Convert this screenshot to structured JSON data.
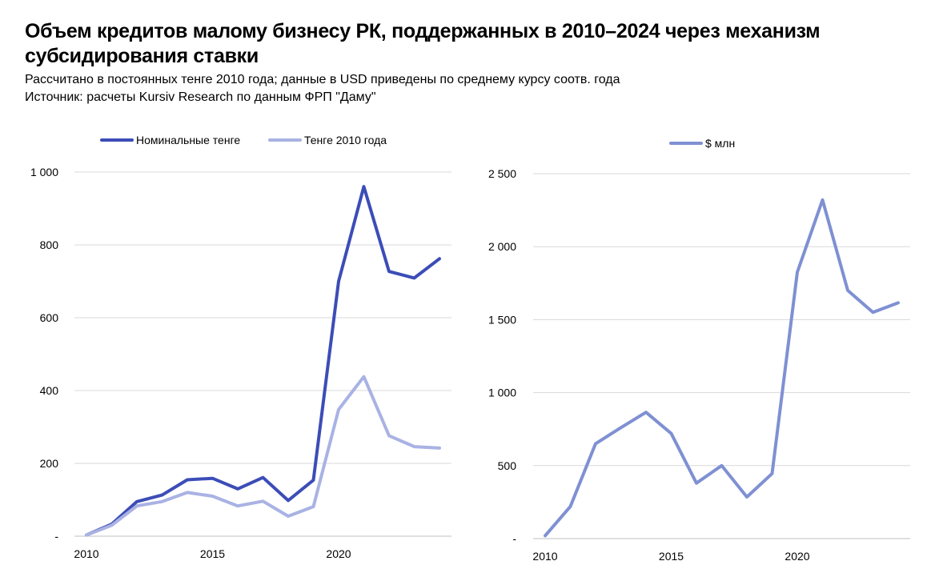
{
  "header": {
    "title": "Объем кредитов малому бизнесу РК, поддержанных в 2010–2024 через механизм субсидирования ставки",
    "subtitle": "Рассчитано в постоянных тенге 2010 года; данные в USD приведены по среднему курсу соотв. года",
    "source": "Источник: расчеты Kursiv Research по данным ФРП \"Даму\""
  },
  "chart_data": [
    {
      "type": "line",
      "x": [
        2010,
        2011,
        2012,
        2013,
        2014,
        2015,
        2016,
        2017,
        2018,
        2019,
        2020,
        2021,
        2022,
        2023,
        2024
      ],
      "x_ticks": [
        2010,
        2015,
        2020
      ],
      "x_tick_labels": [
        "2010",
        "2015",
        "2020"
      ],
      "ylim": [
        0,
        1000
      ],
      "y_ticks": [
        0,
        200,
        400,
        600,
        800,
        1000
      ],
      "y_tick_labels": [
        "-",
        "200",
        "400",
        "600",
        "800",
        "1 000"
      ],
      "grid": true,
      "legend": "top",
      "series": [
        {
          "name": "Номинальные тенге",
          "color": "#3c4db7",
          "values": [
            3,
            33,
            95,
            113,
            155,
            159,
            130,
            161,
            98,
            154,
            700,
            960,
            727,
            709,
            762
          ]
        },
        {
          "name": "Тенге 2010 года",
          "color": "#a9b2e3",
          "values": [
            3,
            30,
            83,
            95,
            120,
            110,
            83,
            96,
            55,
            81,
            348,
            438,
            276,
            246,
            242
          ]
        }
      ]
    },
    {
      "type": "line",
      "x": [
        2010,
        2011,
        2012,
        2013,
        2014,
        2015,
        2016,
        2017,
        2018,
        2019,
        2020,
        2021,
        2022,
        2023,
        2024
      ],
      "x_ticks": [
        2010,
        2015,
        2020
      ],
      "x_tick_labels": [
        "2010",
        "2015",
        "2020"
      ],
      "ylim": [
        0,
        2500
      ],
      "y_ticks": [
        0,
        500,
        1000,
        1500,
        2000,
        2500
      ],
      "y_tick_labels": [
        "-",
        "500",
        "1 000",
        "1 500",
        "2 000",
        "2 500"
      ],
      "grid": true,
      "legend": "top",
      "series": [
        {
          "name": "$ млн",
          "color": "#7f90d3",
          "values": [
            20,
            220,
            650,
            760,
            865,
            720,
            380,
            500,
            285,
            445,
            1825,
            2320,
            1700,
            1550,
            1615
          ]
        }
      ]
    }
  ]
}
